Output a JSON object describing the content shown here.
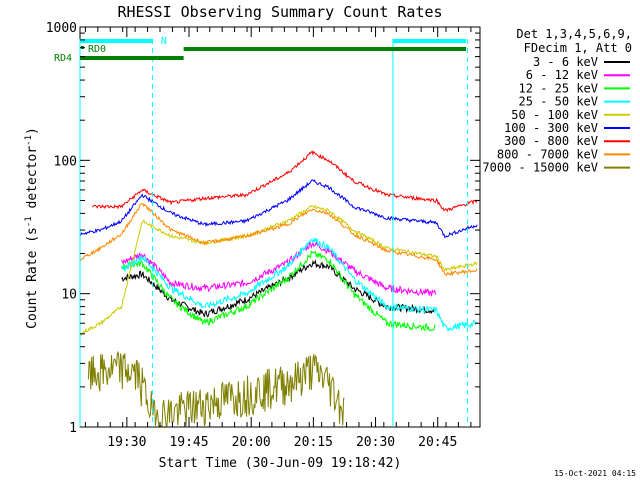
{
  "chart_data": {
    "type": "line",
    "title": "RHESSI Observing Summary Count Rates",
    "xlabel": "Start Time (30-Jun-09 19:18:42)",
    "ylabel_main": "Count Rate (s",
    "ylabel_sup1": "-1",
    "ylabel_mid": " detector",
    "ylabel_sup2": "-1",
    "ylabel_end": ")",
    "yscale": "log",
    "ylim": [
      1,
      1000
    ],
    "y_ticks": [
      {
        "value": 1,
        "label": "1"
      },
      {
        "value": 10,
        "label": "10"
      },
      {
        "value": 100,
        "label": "100"
      },
      {
        "value": 1000,
        "label": "1000"
      }
    ],
    "xlim_minutes": [
      0,
      36.5
    ],
    "x_ticks": [
      {
        "value": 11.3,
        "label": "19:30"
      },
      {
        "value": 26.3,
        "label": "19:45"
      },
      {
        "value": 41.3,
        "label": "20:00"
      },
      {
        "value": 56.3,
        "label": "20:15"
      },
      {
        "value": 71.3,
        "label": "20:30"
      },
      {
        "value": 86.3,
        "label": "20:45"
      }
    ],
    "x_range_minutes": [
      0,
      96.5
    ],
    "legend_header": [
      "Det 1,3,4,5,6,9,",
      "FDecim 1, Att 0"
    ],
    "legend_placement": "right",
    "series": [
      {
        "name": "3 - 6 keV",
        "color": "#000000",
        "points": [
          [
            10,
            13
          ],
          [
            15,
            14
          ],
          [
            22,
            9
          ],
          [
            30,
            7
          ],
          [
            40,
            9
          ],
          [
            50,
            13
          ],
          [
            56,
            17
          ],
          [
            60,
            16
          ],
          [
            66,
            11
          ],
          [
            74,
            8
          ],
          [
            86,
            7.5
          ]
        ]
      },
      {
        "name": "6 - 12 keV",
        "color": "#ff00ff",
        "points": [
          [
            10,
            17
          ],
          [
            15,
            20
          ],
          [
            22,
            12
          ],
          [
            30,
            11
          ],
          [
            40,
            12
          ],
          [
            50,
            17
          ],
          [
            56,
            24
          ],
          [
            60,
            21
          ],
          [
            66,
            15
          ],
          [
            74,
            11
          ],
          [
            86,
            10
          ]
        ]
      },
      {
        "name": "12 - 25 keV",
        "color": "#00ff00",
        "points": [
          [
            10,
            16
          ],
          [
            15,
            17
          ],
          [
            22,
            9
          ],
          [
            30,
            6
          ],
          [
            40,
            8
          ],
          [
            50,
            13
          ],
          [
            56,
            20
          ],
          [
            60,
            18
          ],
          [
            66,
            10
          ],
          [
            74,
            6
          ],
          [
            86,
            5.5
          ]
        ]
      },
      {
        "name": "25 - 50 keV",
        "color": "#00ffff",
        "points": [
          [
            10,
            15
          ],
          [
            15,
            19
          ],
          [
            22,
            11
          ],
          [
            30,
            8
          ],
          [
            40,
            10
          ],
          [
            50,
            16
          ],
          [
            56,
            26
          ],
          [
            60,
            22
          ],
          [
            66,
            13
          ],
          [
            74,
            8
          ],
          [
            86,
            7.5
          ],
          [
            88,
            5.5
          ],
          [
            96,
            6
          ]
        ]
      },
      {
        "name": "50 - 100 keV",
        "color": "#cccc00",
        "points": [
          [
            0,
            5
          ],
          [
            5,
            6
          ],
          [
            10,
            8
          ],
          [
            15,
            35
          ],
          [
            22,
            27
          ],
          [
            30,
            24
          ],
          [
            40,
            27
          ],
          [
            50,
            35
          ],
          [
            56,
            45
          ],
          [
            60,
            42
          ],
          [
            66,
            30
          ],
          [
            74,
            22
          ],
          [
            86,
            19
          ],
          [
            88,
            15
          ],
          [
            96,
            17
          ]
        ]
      },
      {
        "name": "100 - 300 keV",
        "color": "#0000ff",
        "points": [
          [
            0,
            28
          ],
          [
            5,
            30
          ],
          [
            10,
            35
          ],
          [
            15,
            55
          ],
          [
            22,
            40
          ],
          [
            30,
            33
          ],
          [
            40,
            35
          ],
          [
            50,
            50
          ],
          [
            56,
            70
          ],
          [
            60,
            63
          ],
          [
            66,
            45
          ],
          [
            74,
            37
          ],
          [
            86,
            34
          ],
          [
            88,
            27
          ],
          [
            96,
            33
          ]
        ]
      },
      {
        "name": "300 - 800 keV",
        "color": "#ff0000",
        "points": [
          [
            3,
            45
          ],
          [
            10,
            45
          ],
          [
            15,
            60
          ],
          [
            22,
            48
          ],
          [
            30,
            52
          ],
          [
            40,
            55
          ],
          [
            50,
            80
          ],
          [
            56,
            115
          ],
          [
            60,
            100
          ],
          [
            66,
            70
          ],
          [
            74,
            55
          ],
          [
            86,
            50
          ],
          [
            88,
            42
          ],
          [
            96,
            50
          ]
        ]
      },
      {
        "name": "800 - 7000 keV",
        "color": "#ff8800",
        "points": [
          [
            0,
            18
          ],
          [
            5,
            22
          ],
          [
            10,
            28
          ],
          [
            15,
            48
          ],
          [
            22,
            30
          ],
          [
            30,
            24
          ],
          [
            40,
            27
          ],
          [
            50,
            33
          ],
          [
            56,
            43
          ],
          [
            60,
            40
          ],
          [
            66,
            28
          ],
          [
            74,
            21
          ],
          [
            86,
            18
          ],
          [
            88,
            14
          ],
          [
            96,
            15
          ]
        ]
      },
      {
        "name": "7000 - 15000 keV",
        "color": "#808000",
        "points": [
          [
            2,
            2.5
          ],
          [
            10,
            2.8
          ],
          [
            14,
            2.5
          ],
          [
            18,
            1.2
          ],
          [
            52,
            2.3
          ],
          [
            56,
            2.8
          ],
          [
            60,
            2.2
          ],
          [
            64,
            1.3
          ]
        ]
      }
    ],
    "attenuator_labels": [
      "N",
      "RD0",
      "RD4"
    ],
    "markers_color": "#00ffff",
    "flags_color": "#008000"
  },
  "footer": {
    "timestamp": "15-Oct-2021 04:15"
  }
}
